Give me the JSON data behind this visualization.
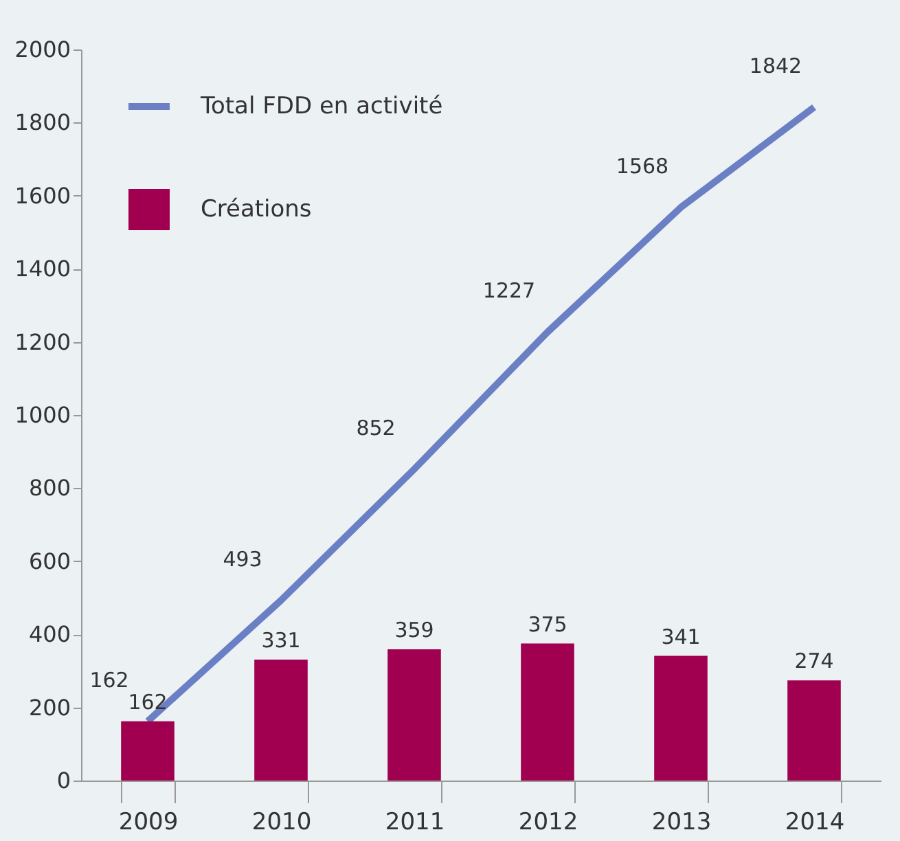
{
  "chart_data": {
    "type": "bar",
    "categories": [
      "2009",
      "2010",
      "2011",
      "2012",
      "2013",
      "2014"
    ],
    "series": [
      {
        "name": "Total FDD en activité",
        "type": "line",
        "color": "#6a7fc4",
        "values": [
          162,
          493,
          852,
          1227,
          1568,
          1842
        ]
      },
      {
        "name": "Créations",
        "color": "#a0004f",
        "values": [
          162,
          331,
          359,
          375,
          341,
          274
        ]
      }
    ],
    "ylim": [
      0,
      2000
    ],
    "yticks": [
      0,
      200,
      400,
      600,
      800,
      1000,
      1200,
      1400,
      1600,
      1800,
      2000
    ],
    "data_labels": true,
    "grid": false,
    "legend": "top left",
    "marker": "none",
    "line_style": "solid"
  }
}
